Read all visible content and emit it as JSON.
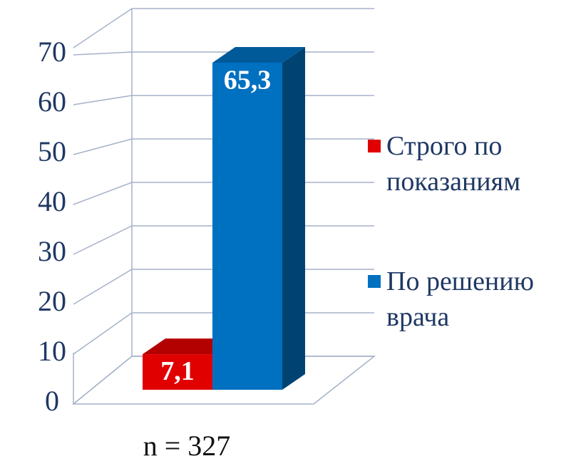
{
  "chart_data": {
    "type": "bar3d",
    "categories": [
      "n = 327"
    ],
    "series": [
      {
        "name": "Строго по показаниям",
        "color": "#e00000",
        "values": [
          7.1
        ],
        "value_labels": [
          "7,1"
        ]
      },
      {
        "name": "По решению врача",
        "color": "#0070c0",
        "values": [
          65.3
        ],
        "value_labels": [
          "65,3"
        ]
      }
    ],
    "ylim": [
      0,
      80
    ],
    "yticks": [
      0,
      10,
      20,
      30,
      40,
      50,
      60,
      70
    ],
    "grid": true,
    "legend": "right"
  }
}
